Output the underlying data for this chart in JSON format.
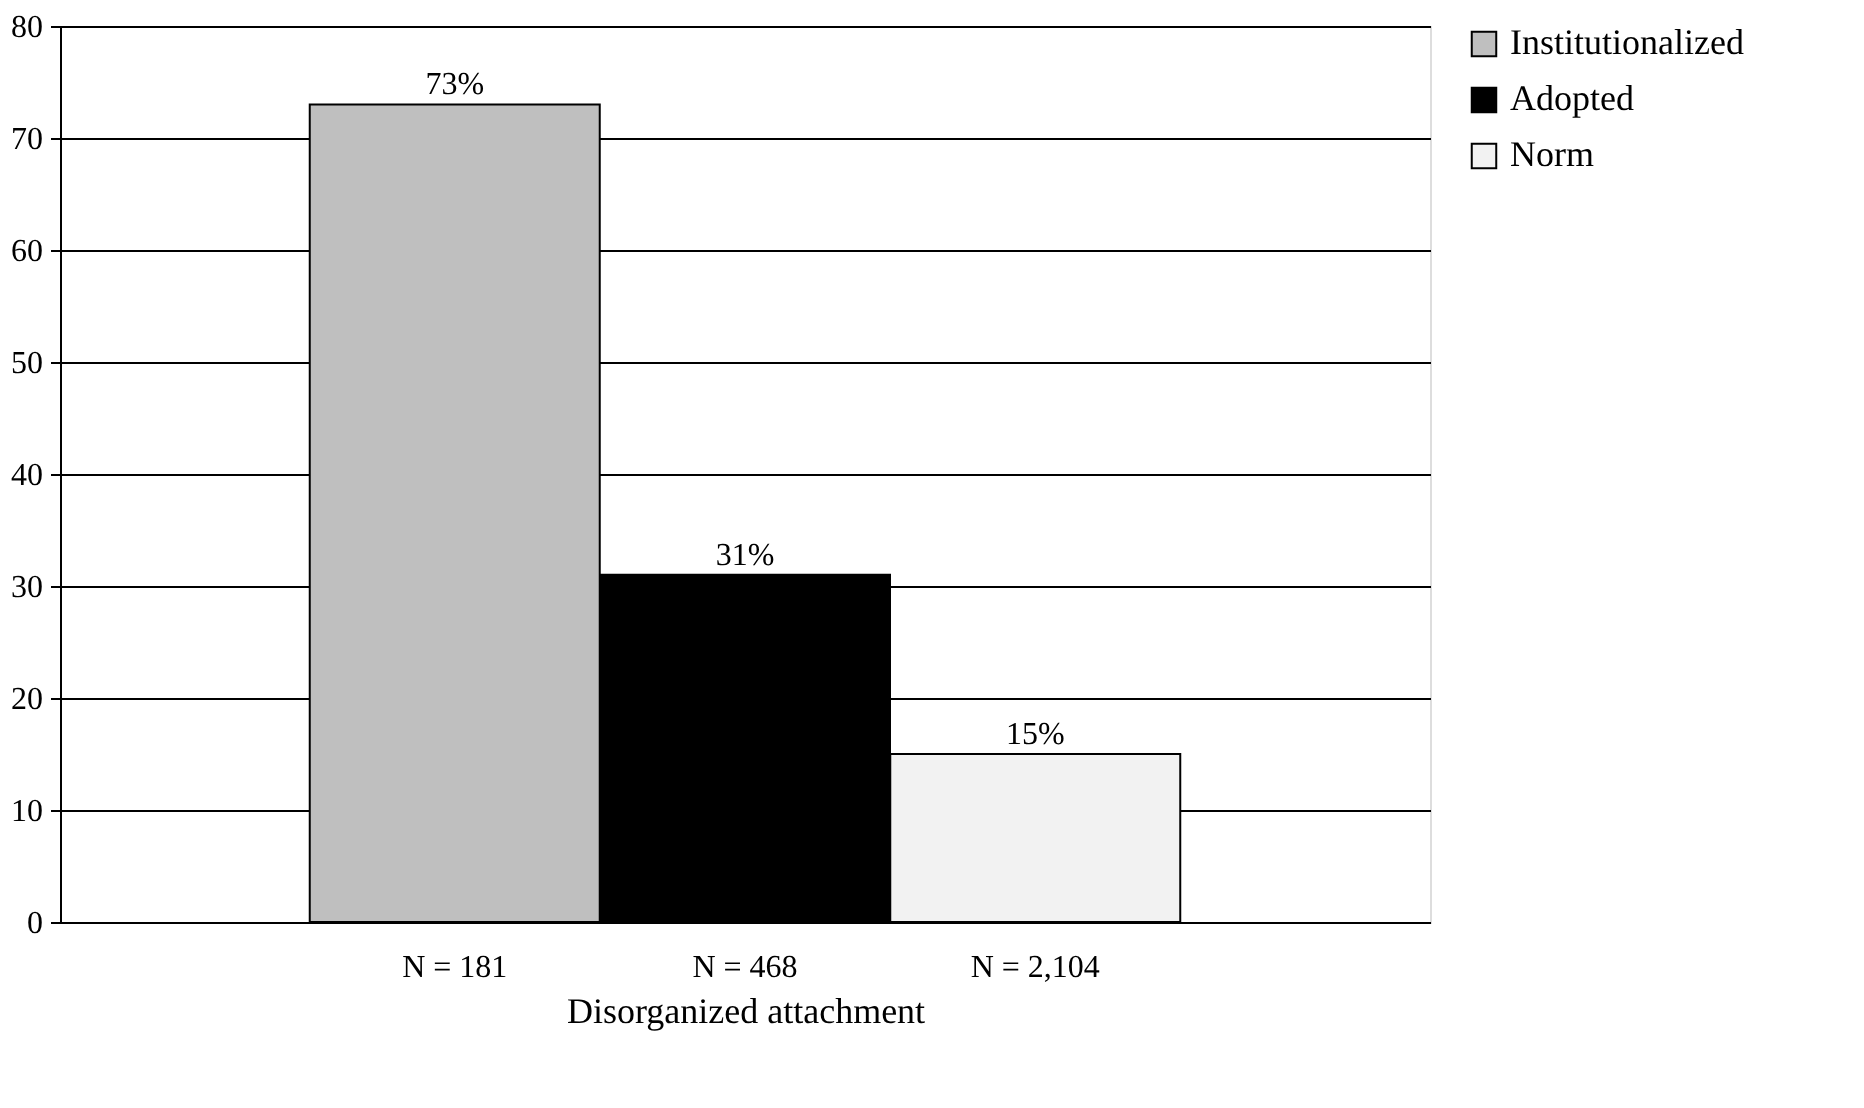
{
  "chart_data": {
    "type": "bar",
    "xlabel": "Disorganized attachment",
    "categories": [
      "N = 181",
      "N = 468",
      "N = 2,104"
    ],
    "series": [
      {
        "name": "Institutionalized",
        "color": "#bfbfbf",
        "values": [
          73,
          null,
          null
        ],
        "value_labels": [
          "73%",
          null,
          null
        ]
      },
      {
        "name": "Adopted",
        "color": "#000000",
        "values": [
          null,
          31,
          null
        ],
        "value_labels": [
          null,
          "31%",
          null
        ]
      },
      {
        "name": "Norm",
        "color": "#f2f2f2",
        "values": [
          null,
          null,
          15
        ],
        "value_labels": [
          null,
          null,
          "15%"
        ]
      }
    ],
    "ylim": [
      0,
      80
    ],
    "yticks": [
      0,
      10,
      20,
      30,
      40,
      50,
      60,
      70,
      80
    ],
    "grid": "y",
    "legend": "right"
  }
}
